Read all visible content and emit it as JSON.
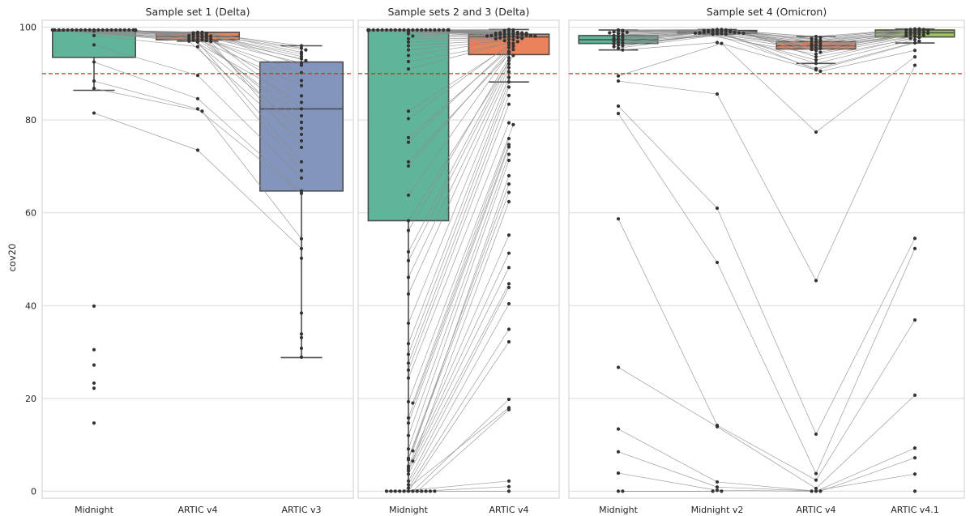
{
  "figure": {
    "ylabel": "cov20",
    "threshold": 90,
    "threshold_color": "#e0201c",
    "palette": [
      "#66c2a5",
      "#fc8d62",
      "#8da0cb",
      "#a6d854"
    ]
  },
  "chart_data": [
    {
      "type": "box",
      "title": "Sample set 1 (Delta)",
      "ylabel": "cov20",
      "ylim": [
        -1.5,
        101.5
      ],
      "yticks": [
        0,
        20,
        40,
        60,
        80,
        100
      ],
      "grid": true,
      "categories": [
        "Midnight",
        "ARTIC v4",
        "ARTIC v3"
      ],
      "colors": [
        "#66c2a5",
        "#fc8d62",
        "#8da0cb"
      ],
      "boxes": [
        {
          "q1": 93.5,
          "median": 99.2,
          "q3": 99.4,
          "whislo": 86.4,
          "whishi": 99.4
        },
        {
          "q1": 97.3,
          "median": 98.0,
          "q3": 98.9,
          "whislo": 97.0,
          "whishi": 98.9
        },
        {
          "q1": 64.7,
          "median": 82.4,
          "q3": 92.5,
          "whislo": 28.8,
          "whishi": 96.0
        }
      ],
      "points": [
        [
          99.4,
          99.4,
          99.4,
          99.4,
          99.4,
          99.4,
          99.4,
          99.4,
          99.4,
          99.4,
          99.4,
          99.4,
          99.4,
          99.4,
          99.4,
          99.4,
          99.4,
          99.4,
          99.4,
          99.4,
          99.4,
          99.3,
          99.2,
          98.2,
          96.2,
          92.5,
          88.4,
          86.8,
          81.5,
          39.9,
          30.5,
          27.2,
          23.3,
          22.2,
          14.7
        ],
        [
          98.9,
          98.9,
          98.8,
          98.7,
          98.6,
          98.5,
          98.4,
          98.3,
          98.2,
          98.1,
          98.0,
          97.9,
          97.8,
          97.7,
          97.6,
          97.5,
          97.4,
          97.3,
          97.2,
          97.1,
          97.0,
          96.9,
          96.8,
          95.8,
          89.6,
          84.6,
          82.4,
          81.9,
          73.5
        ],
        [
          96.0,
          95.5,
          95.1,
          94.6,
          94.2,
          93.7,
          93.2,
          92.8,
          92.3,
          91.8,
          90.2,
          88.5,
          87.4,
          85.2,
          83.8,
          82.4,
          80.9,
          79.5,
          78.2,
          76.9,
          75.5,
          74.1,
          71.0,
          69.1,
          67.5,
          64.7,
          64.2,
          54.4,
          52.3,
          50.2,
          38.4,
          33.9,
          33.1,
          30.8,
          28.9
        ]
      ]
    },
    {
      "type": "box",
      "title": "Sample sets 2 and 3 (Delta)",
      "ylim": [
        -1.5,
        101.5
      ],
      "yticks": [
        0,
        20,
        40,
        60,
        80,
        100
      ],
      "grid": true,
      "categories": [
        "Midnight",
        "ARTIC v4"
      ],
      "colors": [
        "#66c2a5",
        "#fc8d62"
      ],
      "boxes": [
        {
          "q1": 58.3,
          "median": 99.3,
          "q3": 99.4,
          "whislo": 0,
          "whishi": 99.4
        },
        {
          "q1": 94.1,
          "median": 97.9,
          "q3": 98.5,
          "whislo": 88.2,
          "whishi": 99.5
        }
      ],
      "points": [
        [
          99.4,
          99.4,
          99.4,
          99.4,
          99.4,
          99.4,
          99.4,
          99.4,
          99.4,
          99.4,
          99.4,
          99.4,
          99.4,
          99.4,
          99.4,
          99.4,
          99.4,
          99.4,
          99.4,
          99.4,
          99.4,
          99.4,
          99.4,
          99.4,
          99.3,
          99.1,
          98.6,
          98.1,
          97.5,
          96.8,
          96.0,
          95.1,
          93.9,
          92.6,
          91.0,
          81.9,
          80.3,
          76.2,
          75.2,
          71.0,
          70.1,
          63.8,
          58.3,
          56.2,
          51.6,
          49.7,
          46.1,
          42.5,
          36.2,
          31.8,
          29.5,
          27.6,
          26.1,
          24.4,
          19.3,
          19.0,
          15.8,
          14.7,
          12.0,
          9.1,
          8.7,
          7.1,
          6.8,
          6.5,
          5.4,
          4.9,
          4.4,
          3.7,
          2.2,
          1.4,
          0.7,
          0,
          0,
          0,
          0,
          0,
          0,
          0,
          0,
          0,
          0,
          0,
          0
        ],
        [
          99.5,
          99.4,
          99.3,
          99.2,
          99.1,
          99.0,
          98.9,
          98.8,
          98.8,
          98.7,
          98.7,
          98.6,
          98.6,
          98.5,
          98.5,
          98.4,
          98.4,
          98.3,
          98.3,
          98.2,
          98.2,
          98.1,
          98.1,
          98.0,
          98.0,
          97.9,
          97.8,
          97.7,
          97.6,
          97.5,
          97.4,
          97.3,
          97.1,
          96.9,
          96.7,
          96.5,
          96.2,
          95.9,
          95.6,
          95.2,
          94.8,
          94.4,
          93.9,
          93.4,
          92.8,
          92.1,
          91.3,
          90.4,
          89.2,
          88.2,
          87.1,
          85.3,
          83.4,
          79.4,
          79.0,
          76.0,
          74.7,
          74.2,
          72.6,
          71.3,
          68.0,
          66.2,
          64.4,
          62.4,
          55.2,
          51.3,
          48.2,
          44.7,
          43.9,
          40.4,
          34.9,
          32.2,
          19.8,
          18.0,
          17.6,
          2.2,
          1.0,
          0
        ]
      ]
    },
    {
      "type": "box",
      "title": "Sample set 4 (Omicron)",
      "ylim": [
        -1.5,
        101.5
      ],
      "yticks": [
        0,
        20,
        40,
        60,
        80,
        100
      ],
      "grid": true,
      "categories": [
        "Midnight",
        "Midnight v2",
        "ARTIC v4",
        "ARTIC v4.1"
      ],
      "colors": [
        "#66c2a5",
        "#fc8d62",
        "#fc8d62",
        "#a6d854"
      ],
      "boxes": [
        {
          "q1": 96.5,
          "median": 97.3,
          "q3": 98.2,
          "whislo": 95.1,
          "whishi": 99.4
        },
        {
          "q1": 98.7,
          "median": 99.0,
          "q3": 99.3,
          "whislo": 98.5,
          "whishi": 99.5
        },
        {
          "q1": 95.3,
          "median": 96.0,
          "q3": 96.9,
          "whislo": 92.2,
          "whishi": 98.0
        },
        {
          "q1": 97.9,
          "median": 98.8,
          "q3": 99.4,
          "whislo": 96.6,
          "whishi": 99.6
        }
      ],
      "points": [
        [
          99.4,
          99.3,
          99.2,
          99.1,
          99.0,
          98.9,
          98.8,
          98.6,
          98.4,
          98.2,
          98.0,
          97.8,
          97.6,
          97.4,
          97.2,
          97.0,
          96.8,
          96.6,
          96.4,
          96.2,
          96.0,
          95.8,
          95.5,
          95.1,
          89.5,
          88.4,
          83.0,
          81.4,
          58.7,
          26.7,
          13.4,
          8.5,
          3.9,
          0,
          0
        ],
        [
          99.5,
          99.5,
          99.4,
          99.4,
          99.3,
          99.3,
          99.3,
          99.2,
          99.2,
          99.1,
          99.1,
          99.0,
          99.0,
          98.9,
          98.9,
          98.8,
          98.8,
          98.7,
          98.7,
          98.6,
          98.6,
          98.5,
          98.5,
          96.7,
          96.5,
          85.6,
          61.0,
          49.3,
          14.2,
          13.9,
          2.0,
          0.9,
          0.2,
          0,
          0
        ],
        [
          98.0,
          97.8,
          97.6,
          97.4,
          97.2,
          97.0,
          96.8,
          96.6,
          96.4,
          96.2,
          96.0,
          95.8,
          95.6,
          95.4,
          95.2,
          95.0,
          94.6,
          94.2,
          93.6,
          92.9,
          92.2,
          91.1,
          90.8,
          90.5,
          77.4,
          45.4,
          12.3,
          3.8,
          2.4,
          0.6,
          0,
          0,
          0
        ],
        [
          99.6,
          99.6,
          99.5,
          99.5,
          99.4,
          99.3,
          99.2,
          99.1,
          99.0,
          98.9,
          98.8,
          98.7,
          98.6,
          98.5,
          98.4,
          98.3,
          98.2,
          98.0,
          97.8,
          97.6,
          97.3,
          97.0,
          96.6,
          95.0,
          93.6,
          91.8,
          54.5,
          52.3,
          36.9,
          20.7,
          9.3,
          7.2,
          3.7,
          0
        ]
      ]
    }
  ]
}
